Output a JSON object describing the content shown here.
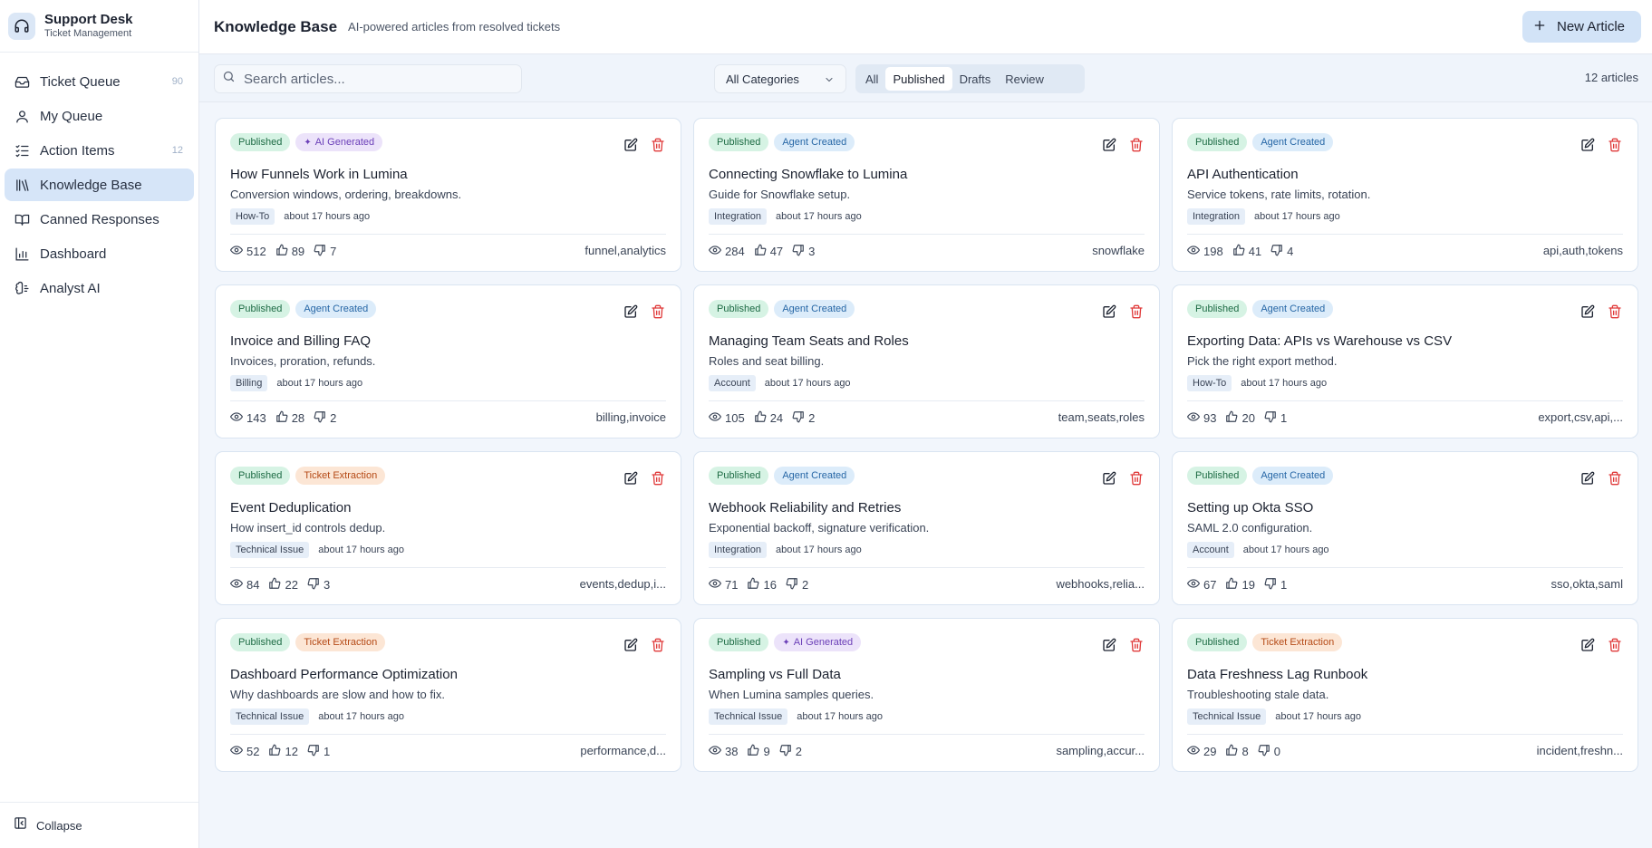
{
  "brand": {
    "title": "Support Desk",
    "subtitle": "Ticket Management"
  },
  "sidebar": {
    "items": [
      {
        "label": "Ticket Queue",
        "badge": "90",
        "icon": "inbox-icon",
        "active": false
      },
      {
        "label": "My Queue",
        "badge": "",
        "icon": "user-icon",
        "active": false
      },
      {
        "label": "Action Items",
        "badge": "12",
        "icon": "checklist-icon",
        "active": false
      },
      {
        "label": "Knowledge Base",
        "badge": "",
        "icon": "library-icon",
        "active": true
      },
      {
        "label": "Canned Responses",
        "badge": "",
        "icon": "book-icon",
        "active": false
      },
      {
        "label": "Dashboard",
        "badge": "",
        "icon": "bar-chart-icon",
        "active": false
      },
      {
        "label": "Analyst AI",
        "badge": "",
        "icon": "brain-icon",
        "active": false
      }
    ],
    "collapse_label": "Collapse"
  },
  "header": {
    "title": "Knowledge Base",
    "subtitle": "AI-powered articles from resolved tickets",
    "new_button": "New Article"
  },
  "toolbar": {
    "search_placeholder": "Search articles...",
    "category_value": "All Categories",
    "tabs": [
      {
        "label": "All",
        "active": false
      },
      {
        "label": "Published",
        "active": true
      },
      {
        "label": "Drafts",
        "active": false
      },
      {
        "label": "Review",
        "active": false
      }
    ],
    "count": "12 articles"
  },
  "colors": {
    "accent": "#d2e3f7",
    "published": "#d6f3e4",
    "ai": "#ece3fa",
    "agent": "#dcecfa",
    "ticket": "#fce6d5",
    "delete": "#e03b3b"
  },
  "articles": [
    {
      "status": "Published",
      "source": "AI Generated",
      "source_type": "ai",
      "title": "How Funnels Work in Lumina",
      "desc": "Conversion windows, ordering, breakdowns.",
      "category": "How-To",
      "time": "about 17 hours ago",
      "views": "512",
      "likes": "89",
      "dislikes": "7",
      "keywords": "funnel,analytics"
    },
    {
      "status": "Published",
      "source": "Agent Created",
      "source_type": "agent",
      "title": "Connecting Snowflake to Lumina",
      "desc": "Guide for Snowflake setup.",
      "category": "Integration",
      "time": "about 17 hours ago",
      "views": "284",
      "likes": "47",
      "dislikes": "3",
      "keywords": "snowflake"
    },
    {
      "status": "Published",
      "source": "Agent Created",
      "source_type": "agent",
      "title": "API Authentication",
      "desc": "Service tokens, rate limits, rotation.",
      "category": "Integration",
      "time": "about 17 hours ago",
      "views": "198",
      "likes": "41",
      "dislikes": "4",
      "keywords": "api,auth,tokens"
    },
    {
      "status": "Published",
      "source": "Agent Created",
      "source_type": "agent",
      "title": "Invoice and Billing FAQ",
      "desc": "Invoices, proration, refunds.",
      "category": "Billing",
      "time": "about 17 hours ago",
      "views": "143",
      "likes": "28",
      "dislikes": "2",
      "keywords": "billing,invoice"
    },
    {
      "status": "Published",
      "source": "Agent Created",
      "source_type": "agent",
      "title": "Managing Team Seats and Roles",
      "desc": "Roles and seat billing.",
      "category": "Account",
      "time": "about 17 hours ago",
      "views": "105",
      "likes": "24",
      "dislikes": "2",
      "keywords": "team,seats,roles"
    },
    {
      "status": "Published",
      "source": "Agent Created",
      "source_type": "agent",
      "title": "Exporting Data: APIs vs Warehouse vs CSV",
      "desc": "Pick the right export method.",
      "category": "How-To",
      "time": "about 17 hours ago",
      "views": "93",
      "likes": "20",
      "dislikes": "1",
      "keywords": "export,csv,api,..."
    },
    {
      "status": "Published",
      "source": "Ticket Extraction",
      "source_type": "ticket",
      "title": "Event Deduplication",
      "desc": "How insert_id controls dedup.",
      "category": "Technical Issue",
      "time": "about 17 hours ago",
      "views": "84",
      "likes": "22",
      "dislikes": "3",
      "keywords": "events,dedup,i..."
    },
    {
      "status": "Published",
      "source": "Agent Created",
      "source_type": "agent",
      "title": "Webhook Reliability and Retries",
      "desc": "Exponential backoff, signature verification.",
      "category": "Integration",
      "time": "about 17 hours ago",
      "views": "71",
      "likes": "16",
      "dislikes": "2",
      "keywords": "webhooks,relia..."
    },
    {
      "status": "Published",
      "source": "Agent Created",
      "source_type": "agent",
      "title": "Setting up Okta SSO",
      "desc": "SAML 2.0 configuration.",
      "category": "Account",
      "time": "about 17 hours ago",
      "views": "67",
      "likes": "19",
      "dislikes": "1",
      "keywords": "sso,okta,saml"
    },
    {
      "status": "Published",
      "source": "Ticket Extraction",
      "source_type": "ticket",
      "title": "Dashboard Performance Optimization",
      "desc": "Why dashboards are slow and how to fix.",
      "category": "Technical Issue",
      "time": "about 17 hours ago",
      "views": "52",
      "likes": "12",
      "dislikes": "1",
      "keywords": "performance,d..."
    },
    {
      "status": "Published",
      "source": "AI Generated",
      "source_type": "ai",
      "title": "Sampling vs Full Data",
      "desc": "When Lumina samples queries.",
      "category": "Technical Issue",
      "time": "about 17 hours ago",
      "views": "38",
      "likes": "9",
      "dislikes": "2",
      "keywords": "sampling,accur..."
    },
    {
      "status": "Published",
      "source": "Ticket Extraction",
      "source_type": "ticket",
      "title": "Data Freshness Lag Runbook",
      "desc": "Troubleshooting stale data.",
      "category": "Technical Issue",
      "time": "about 17 hours ago",
      "views": "29",
      "likes": "8",
      "dislikes": "0",
      "keywords": "incident,freshn..."
    }
  ]
}
